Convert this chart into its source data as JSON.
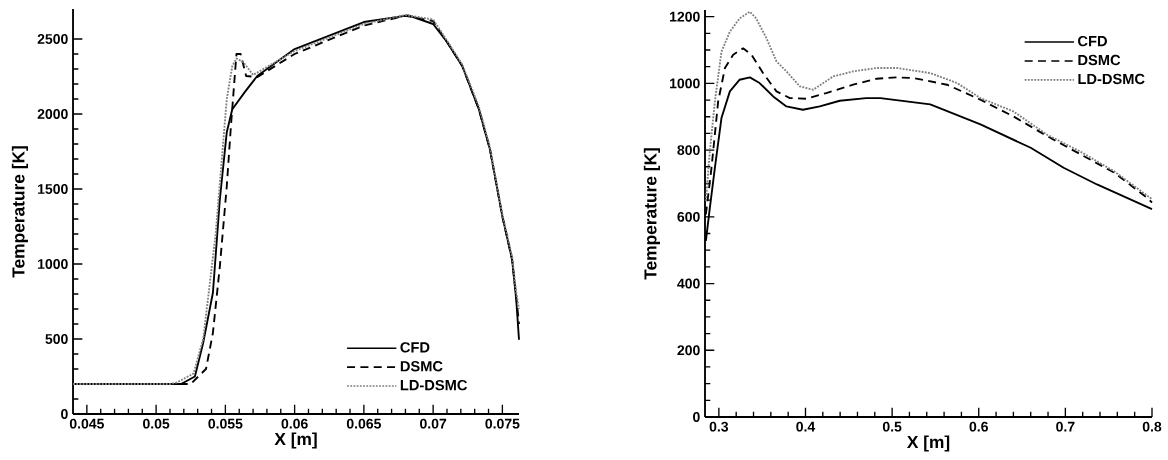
{
  "chart_data": [
    {
      "type": "line",
      "xlabel": "X [m]",
      "ylabel": "Temperature [K]",
      "xlim": [
        0.044,
        0.0762
      ],
      "ylim": [
        0,
        2700
      ],
      "xticks": [
        0.045,
        0.05,
        0.055,
        0.06,
        0.065,
        0.07,
        0.075
      ],
      "yticks": [
        0,
        500,
        1000,
        1500,
        2000,
        2500
      ],
      "legend": "bottom right",
      "marker": "none",
      "grid": false,
      "series": [
        {
          "name": "CFD",
          "color": "#000000",
          "line_style": "solid",
          "x": [
            0.044,
            0.0518,
            0.0528,
            0.0534,
            0.0541,
            0.0546,
            0.0551,
            0.0555,
            0.0564,
            0.0573,
            0.06,
            0.065,
            0.0682,
            0.07,
            0.071,
            0.0721,
            0.0733,
            0.0741,
            0.075,
            0.0757,
            0.076,
            0.0762
          ],
          "values": [
            200,
            200,
            250,
            475,
            808,
            1430,
            1878,
            2032,
            2146,
            2253,
            2433,
            2613,
            2657,
            2600,
            2480,
            2320,
            2032,
            1765,
            1317,
            1030,
            762,
            495
          ]
        },
        {
          "name": "DSMC",
          "color": "#000000",
          "line_style": "dashed",
          "x": [
            0.044,
            0.0525,
            0.0536,
            0.0541,
            0.0546,
            0.0551,
            0.0554,
            0.0557,
            0.0558,
            0.0561,
            0.0565,
            0.0573,
            0.06,
            0.065,
            0.068,
            0.07,
            0.071,
            0.0721,
            0.0733,
            0.0741,
            0.075,
            0.0757,
            0.076,
            0.0762
          ],
          "values": [
            200,
            200,
            300,
            540,
            983,
            1517,
            1918,
            2279,
            2400,
            2400,
            2253,
            2246,
            2400,
            2590,
            2655,
            2620,
            2480,
            2320,
            2032,
            1765,
            1317,
            1030,
            780,
            600
          ]
        },
        {
          "name": "LD-DSMC",
          "color": "#808080",
          "line_style": "dotted",
          "x": [
            0.044,
            0.051,
            0.0515,
            0.0527,
            0.0534,
            0.0543,
            0.0551,
            0.0555,
            0.0558,
            0.0563,
            0.057,
            0.06,
            0.065,
            0.068,
            0.07,
            0.071,
            0.0721,
            0.0733,
            0.0741,
            0.075,
            0.0757,
            0.076,
            0.0762
          ],
          "values": [
            200,
            200,
            210,
            270,
            500,
            1200,
            2099,
            2320,
            2370,
            2346,
            2260,
            2420,
            2600,
            2660,
            2630,
            2490,
            2330,
            2050,
            1780,
            1330,
            1050,
            808,
            700
          ]
        }
      ]
    },
    {
      "type": "line",
      "xlabel": "X [m]",
      "ylabel": "Temperature [K]",
      "xlim": [
        0.284,
        0.8
      ],
      "ylim": [
        0,
        1220
      ],
      "xticks": [
        0.3,
        0.4,
        0.5,
        0.6,
        0.7,
        0.8
      ],
      "yticks": [
        0,
        200,
        400,
        600,
        800,
        1000,
        1200
      ],
      "legend": "top right",
      "marker": "none",
      "grid": false,
      "series": [
        {
          "name": "CFD",
          "color": "#000000",
          "line_style": "solid",
          "x": [
            0.285,
            0.2896,
            0.2954,
            0.303,
            0.3127,
            0.324,
            0.3358,
            0.347,
            0.3627,
            0.378,
            0.397,
            0.4165,
            0.4396,
            0.47,
            0.4865,
            0.544,
            0.602,
            0.66,
            0.698,
            0.7365,
            0.8
          ],
          "values": [
            528,
            627,
            747,
            896,
            976,
            1011,
            1018,
            1001,
            961,
            931,
            921,
            931,
            948,
            956,
            956,
            937,
            877,
            807,
            747,
            697,
            623
          ]
        },
        {
          "name": "DSMC",
          "color": "#000000",
          "line_style": "dashed",
          "x": [
            0.285,
            0.2915,
            0.2992,
            0.307,
            0.3165,
            0.328,
            0.3377,
            0.351,
            0.3665,
            0.382,
            0.401,
            0.424,
            0.455,
            0.482,
            0.5058,
            0.525,
            0.5635,
            0.602,
            0.64,
            0.679,
            0.717,
            0.756,
            0.794,
            0.8
          ],
          "values": [
            607,
            747,
            946,
            1046,
            1086,
            1105,
            1086,
            1031,
            976,
            956,
            954,
            971,
            996,
            1014,
            1018,
            1016,
            996,
            951,
            901,
            842,
            788,
            733,
            658,
            643
          ]
        },
        {
          "name": "LD-DSMC",
          "color": "#808080",
          "line_style": "dotted",
          "x": [
            0.285,
            0.2896,
            0.2954,
            0.303,
            0.3127,
            0.324,
            0.3358,
            0.343,
            0.355,
            0.3665,
            0.378,
            0.3935,
            0.409,
            0.432,
            0.455,
            0.482,
            0.5058,
            0.544,
            0.575,
            0.602,
            0.64,
            0.679,
            0.717,
            0.756,
            0.8
          ],
          "values": [
            647,
            797,
            946,
            1095,
            1155,
            1195,
            1215,
            1195,
            1135,
            1066,
            1036,
            991,
            981,
            1021,
            1036,
            1046,
            1046,
            1031,
            1001,
            956,
            916,
            846,
            796,
            737,
            653
          ]
        }
      ]
    }
  ]
}
